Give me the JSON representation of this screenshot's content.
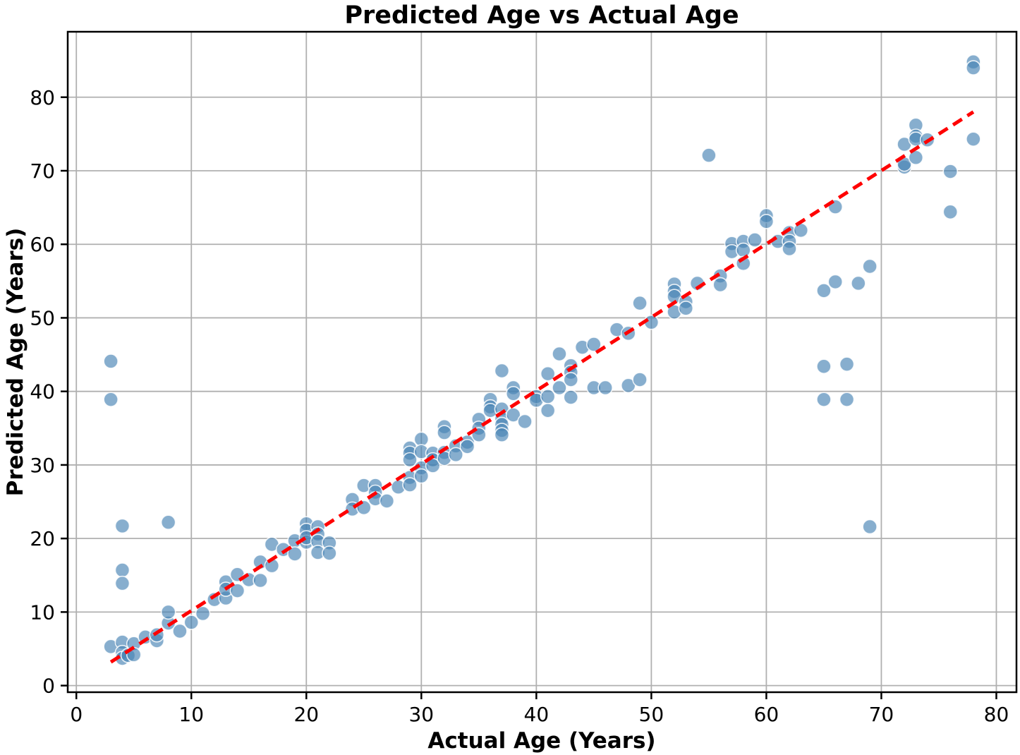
{
  "chart_data": {
    "type": "scatter",
    "title": "Predicted Age vs Actual Age",
    "xlabel": "Actual Age (Years)",
    "ylabel": "Predicted Age (Years)",
    "xlim": [
      -0.75,
      81.75
    ],
    "ylim": [
      -0.9,
      88.9
    ],
    "x_ticks": [
      0,
      10,
      20,
      30,
      40,
      50,
      60,
      70,
      80
    ],
    "y_ticks": [
      0,
      10,
      20,
      30,
      40,
      50,
      60,
      70,
      80
    ],
    "grid": true,
    "legend_position": "none",
    "series": [
      {
        "name": "predicted-vs-actual-points",
        "type": "scatter",
        "marker_color": "#4682b4",
        "marker_alpha": 0.65,
        "marker_edge_color": "#ffffff",
        "points": [
          [
            3,
            5.3
          ],
          [
            4,
            5.9
          ],
          [
            4,
            4.5
          ],
          [
            4,
            3.7
          ],
          [
            4.5,
            4.1
          ],
          [
            5,
            5.7
          ],
          [
            5,
            4.2
          ],
          [
            6,
            6.6
          ],
          [
            7,
            6.1
          ],
          [
            7,
            6.9
          ],
          [
            8,
            8.5
          ],
          [
            8,
            10.0
          ],
          [
            9,
            7.4
          ],
          [
            10,
            8.6
          ],
          [
            11,
            9.8
          ],
          [
            12,
            11.7
          ],
          [
            13,
            11.9
          ],
          [
            13,
            14.1
          ],
          [
            13,
            13.1
          ],
          [
            14,
            15.1
          ],
          [
            14,
            12.9
          ],
          [
            15,
            14.4
          ],
          [
            16,
            14.3
          ],
          [
            16,
            16.8
          ],
          [
            17,
            19.2
          ],
          [
            17,
            16.3
          ],
          [
            18,
            18.5
          ],
          [
            19,
            19.7
          ],
          [
            19,
            17.9
          ],
          [
            20,
            22.0
          ],
          [
            20,
            21.1
          ],
          [
            20,
            19.5
          ],
          [
            20,
            20.1
          ],
          [
            21,
            21.6
          ],
          [
            21,
            20.6
          ],
          [
            21,
            19.6
          ],
          [
            21,
            18.1
          ],
          [
            22,
            19.4
          ],
          [
            22,
            18.0
          ],
          [
            24,
            25.3
          ],
          [
            24,
            24.0
          ],
          [
            25,
            27.2
          ],
          [
            25,
            24.2
          ],
          [
            26,
            27.2
          ],
          [
            26,
            26.3
          ],
          [
            26,
            25.4
          ],
          [
            27,
            25.1
          ],
          [
            28,
            27.0
          ],
          [
            29,
            32.3
          ],
          [
            29,
            31.6
          ],
          [
            29,
            30.7
          ],
          [
            29,
            28.3
          ],
          [
            29,
            27.3
          ],
          [
            30,
            33.5
          ],
          [
            30,
            31.8
          ],
          [
            30,
            29.6
          ],
          [
            30,
            28.5
          ],
          [
            31,
            31.6
          ],
          [
            31,
            30.7
          ],
          [
            31,
            29.9
          ],
          [
            32,
            35.2
          ],
          [
            32,
            34.4
          ],
          [
            32,
            31.7
          ],
          [
            32,
            30.9
          ],
          [
            33,
            32.6
          ],
          [
            33,
            31.4
          ],
          [
            34,
            33.1
          ],
          [
            34,
            32.5
          ],
          [
            35,
            36.2
          ],
          [
            35,
            35.0
          ],
          [
            35,
            34.1
          ],
          [
            36,
            38.9
          ],
          [
            36,
            37.9
          ],
          [
            36,
            37.4
          ],
          [
            37,
            42.8
          ],
          [
            37,
            37.6
          ],
          [
            37,
            36.3
          ],
          [
            37,
            35.5
          ],
          [
            37,
            34.7
          ],
          [
            37,
            34.1
          ],
          [
            38,
            40.5
          ],
          [
            38,
            39.7
          ],
          [
            38,
            36.8
          ],
          [
            39,
            35.9
          ],
          [
            40,
            39.3
          ],
          [
            40,
            38.8
          ],
          [
            41,
            42.4
          ],
          [
            41,
            39.3
          ],
          [
            41,
            37.4
          ],
          [
            42,
            45.1
          ],
          [
            42,
            40.5
          ],
          [
            43,
            43.5
          ],
          [
            43,
            42.6
          ],
          [
            43,
            41.6
          ],
          [
            43,
            39.2
          ],
          [
            44,
            46.0
          ],
          [
            45,
            46.4
          ],
          [
            45,
            40.5
          ],
          [
            46,
            40.5
          ],
          [
            47,
            48.4
          ],
          [
            48,
            47.9
          ],
          [
            48,
            40.8
          ],
          [
            49,
            52.0
          ],
          [
            49,
            41.6
          ],
          [
            50,
            49.4
          ],
          [
            52,
            54.6
          ],
          [
            52,
            53.6
          ],
          [
            52,
            52.9
          ],
          [
            52,
            50.8
          ],
          [
            53,
            52.2
          ],
          [
            53,
            51.3
          ],
          [
            54,
            54.7
          ],
          [
            55,
            72.1
          ],
          [
            56,
            55.7
          ],
          [
            56,
            54.5
          ],
          [
            57,
            60.1
          ],
          [
            57,
            59.0
          ],
          [
            58,
            60.4
          ],
          [
            58,
            59.2
          ],
          [
            58,
            57.4
          ],
          [
            59,
            60.6
          ],
          [
            60,
            63.9
          ],
          [
            60,
            63.1
          ],
          [
            61,
            60.4
          ],
          [
            62,
            61.6
          ],
          [
            62,
            60.4
          ],
          [
            62,
            59.4
          ],
          [
            63,
            61.9
          ],
          [
            65,
            53.7
          ],
          [
            65,
            43.4
          ],
          [
            65,
            38.9
          ],
          [
            66,
            65.1
          ],
          [
            66,
            54.9
          ],
          [
            67,
            43.7
          ],
          [
            67,
            38.9
          ],
          [
            68,
            54.7
          ],
          [
            69,
            57.0
          ],
          [
            69,
            21.6
          ],
          [
            72,
            70.5
          ],
          [
            72,
            70.9
          ],
          [
            72,
            73.6
          ],
          [
            73,
            76.2
          ],
          [
            73,
            74.7
          ],
          [
            73,
            74.3
          ],
          [
            73,
            71.8
          ],
          [
            74,
            74.2
          ],
          [
            76,
            69.9
          ],
          [
            76,
            64.4
          ],
          [
            78,
            74.3
          ],
          [
            78,
            84.8
          ],
          [
            78,
            84.0
          ],
          [
            3,
            44.1
          ],
          [
            3,
            38.9
          ],
          [
            4,
            21.7
          ],
          [
            4,
            15.7
          ],
          [
            4,
            13.9
          ],
          [
            8,
            22.2
          ]
        ]
      },
      {
        "name": "identity-reference-line",
        "type": "line",
        "style": "dashed",
        "color": "#ff0000",
        "points": [
          [
            3,
            3.2
          ],
          [
            78,
            78.0
          ]
        ]
      }
    ],
    "colors": {
      "grid": "#b0b0b0",
      "spine": "#000000",
      "background": "#ffffff",
      "marker": "#4682b4",
      "reference_line": "#ff0000"
    }
  }
}
